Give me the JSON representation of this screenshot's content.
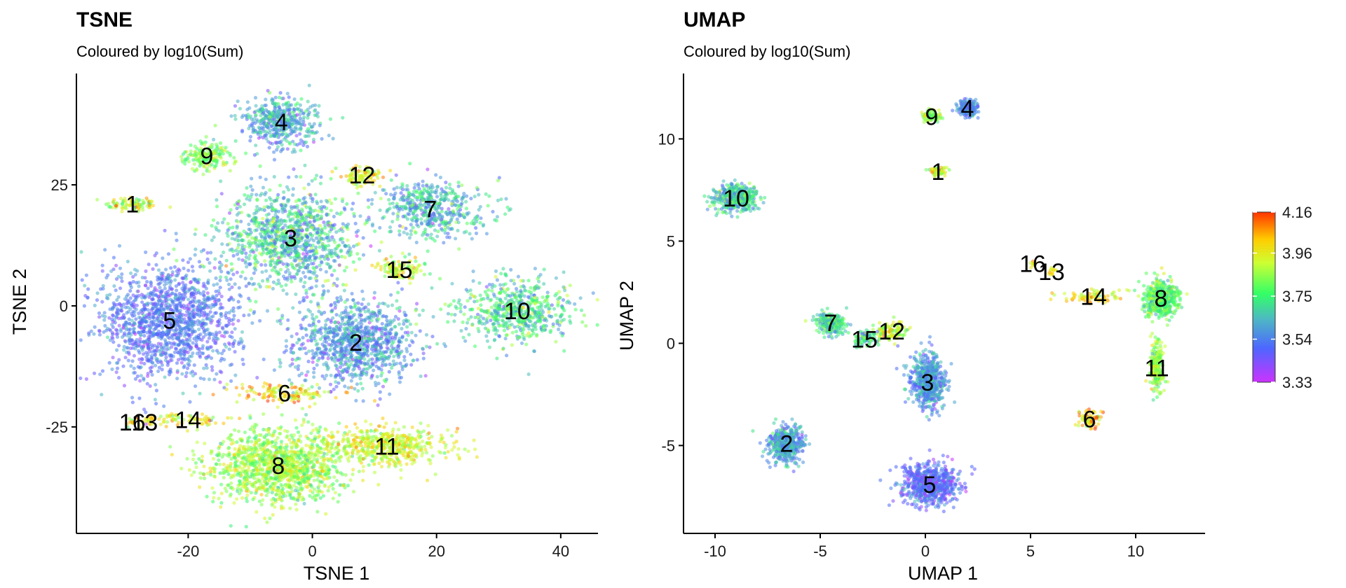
{
  "colors": {
    "scale": [
      "#cc33ff",
      "#4d66ff",
      "#4db8c4",
      "#33ff66",
      "#ccff33",
      "#ffcc00",
      "#ff3300"
    ],
    "text": "#000000"
  },
  "legend": {
    "ticks": [
      "4.16",
      "3.96",
      "3.75",
      "3.54",
      "3.33"
    ],
    "range": [
      3.33,
      4.16
    ],
    "tick_values": [
      4.16,
      3.96,
      3.75,
      3.54,
      3.33
    ]
  },
  "chart_data": [
    {
      "type": "scatter",
      "title": "TSNE",
      "subtitle": "Coloured by log10(Sum)",
      "xlabel": "TSNE 1",
      "ylabel": "TSNE 2",
      "xlim": [
        -38,
        46
      ],
      "ylim": [
        -47,
        48
      ],
      "xticks": [
        -20,
        0,
        20,
        40
      ],
      "xtick_labels": [
        "-20",
        "0",
        "20",
        "40"
      ],
      "yticks": [
        25,
        0,
        -25
      ],
      "ytick_labels": [
        "25",
        "0",
        "-25"
      ],
      "grid": false,
      "color_variable": "log10(Sum)",
      "clusters": [
        {
          "label": "1",
          "x": -29,
          "y": 21,
          "sx": 4,
          "sy": 1.5,
          "n": 90,
          "mean": 3.9,
          "spread": 0.12
        },
        {
          "label": "2",
          "x": 7,
          "y": -7.5,
          "sx": 9,
          "sy": 8,
          "n": 1000,
          "mean": 3.58,
          "spread": 0.09
        },
        {
          "label": "3",
          "x": -3.5,
          "y": 14,
          "sx": 10,
          "sy": 9,
          "n": 1100,
          "mean": 3.66,
          "spread": 0.12
        },
        {
          "label": "4",
          "x": -5,
          "y": 38,
          "sx": 5.5,
          "sy": 4.5,
          "n": 450,
          "mean": 3.6,
          "spread": 0.09
        },
        {
          "label": "5",
          "x": -23,
          "y": -3,
          "sx": 10,
          "sy": 11,
          "n": 1400,
          "mean": 3.52,
          "spread": 0.07
        },
        {
          "label": "6",
          "x": -4.5,
          "y": -18,
          "sx": 7,
          "sy": 1.8,
          "n": 130,
          "mean": 3.98,
          "spread": 0.1
        },
        {
          "label": "7",
          "x": 19,
          "y": 20,
          "sx": 7,
          "sy": 5.5,
          "n": 500,
          "mean": 3.65,
          "spread": 0.1
        },
        {
          "label": "8",
          "x": -5.5,
          "y": -33,
          "sx": 10,
          "sy": 7,
          "n": 1200,
          "mean": 3.86,
          "spread": 0.08
        },
        {
          "label": "9",
          "x": -17,
          "y": 31,
          "sx": 3.5,
          "sy": 2.5,
          "n": 170,
          "mean": 3.82,
          "spread": 0.08
        },
        {
          "label": "10",
          "x": 33,
          "y": -1,
          "sx": 8,
          "sy": 6,
          "n": 600,
          "mean": 3.72,
          "spread": 0.1
        },
        {
          "label": "11",
          "x": 12,
          "y": -29,
          "sx": 9,
          "sy": 3.5,
          "n": 500,
          "mean": 3.93,
          "spread": 0.07
        },
        {
          "label": "12",
          "x": 8,
          "y": 27,
          "sx": 3,
          "sy": 1.8,
          "n": 90,
          "mean": 3.95,
          "spread": 0.08
        },
        {
          "label": "13",
          "x": -27,
          "y": -24,
          "sx": 1.5,
          "sy": 1,
          "n": 18,
          "mean": 3.95,
          "spread": 0.08
        },
        {
          "label": "14",
          "x": -20,
          "y": -23.5,
          "sx": 5,
          "sy": 1.2,
          "n": 70,
          "mean": 3.96,
          "spread": 0.08
        },
        {
          "label": "15",
          "x": 14,
          "y": 7.5,
          "sx": 3.5,
          "sy": 2.2,
          "n": 110,
          "mean": 3.92,
          "spread": 0.08
        },
        {
          "label": "16",
          "x": -29,
          "y": -24,
          "sx": 1,
          "sy": 0.8,
          "n": 10,
          "mean": 3.95,
          "spread": 0.08
        }
      ]
    },
    {
      "type": "scatter",
      "title": "UMAP",
      "subtitle": "Coloured by log10(Sum)",
      "xlabel": "UMAP 1",
      "ylabel": "UMAP 2",
      "xlim": [
        -11.5,
        13.3
      ],
      "ylim": [
        -9.3,
        13.2
      ],
      "xticks": [
        -10,
        -5,
        0,
        5,
        10
      ],
      "xtick_labels": [
        "-10",
        "-5",
        "0",
        "5",
        "10"
      ],
      "yticks": [
        10,
        5,
        0,
        -5
      ],
      "ytick_labels": [
        "10",
        "5",
        "0",
        "-5"
      ],
      "grid": false,
      "color_variable": "log10(Sum)",
      "clusters": [
        {
          "label": "1",
          "x": 0.6,
          "y": 8.4,
          "sx": 0.35,
          "sy": 0.2,
          "n": 70,
          "mean": 3.9,
          "spread": 0.1
        },
        {
          "label": "2",
          "x": -6.6,
          "y": -4.9,
          "sx": 0.8,
          "sy": 0.8,
          "n": 450,
          "mean": 3.6,
          "spread": 0.08
        },
        {
          "label": "3",
          "x": 0.1,
          "y": -1.9,
          "sx": 0.75,
          "sy": 1.2,
          "n": 650,
          "mean": 3.58,
          "spread": 0.08
        },
        {
          "label": "4",
          "x": 2.0,
          "y": 11.5,
          "sx": 0.45,
          "sy": 0.35,
          "n": 220,
          "mean": 3.55,
          "spread": 0.07
        },
        {
          "label": "5",
          "x": 0.2,
          "y": -6.9,
          "sx": 1.2,
          "sy": 0.9,
          "n": 700,
          "mean": 3.5,
          "spread": 0.07
        },
        {
          "label": "6",
          "x": 7.8,
          "y": -3.7,
          "sx": 0.45,
          "sy": 0.35,
          "n": 70,
          "mean": 4.0,
          "spread": 0.1
        },
        {
          "label": "7",
          "x": -4.5,
          "y": 1.0,
          "sx": 0.6,
          "sy": 0.5,
          "n": 260,
          "mean": 3.7,
          "spread": 0.09
        },
        {
          "label": "8",
          "x": 11.2,
          "y": 2.2,
          "sx": 0.75,
          "sy": 0.8,
          "n": 550,
          "mean": 3.78,
          "spread": 0.08
        },
        {
          "label": "9",
          "x": 0.3,
          "y": 11.1,
          "sx": 0.35,
          "sy": 0.25,
          "n": 90,
          "mean": 3.85,
          "spread": 0.08
        },
        {
          "label": "10",
          "x": -9.0,
          "y": 7.1,
          "sx": 0.95,
          "sy": 0.6,
          "n": 450,
          "mean": 3.68,
          "spread": 0.1
        },
        {
          "label": "11",
          "x": 11.0,
          "y": -1.2,
          "sx": 0.3,
          "sy": 1.2,
          "n": 220,
          "mean": 3.85,
          "spread": 0.08
        },
        {
          "label": "12",
          "x": -1.6,
          "y": 0.6,
          "sx": 0.7,
          "sy": 0.45,
          "n": 110,
          "mean": 3.92,
          "spread": 0.08
        },
        {
          "label": "13",
          "x": 6.0,
          "y": 3.5,
          "sx": 0.2,
          "sy": 0.15,
          "n": 14,
          "mean": 3.95,
          "spread": 0.08
        },
        {
          "label": "14",
          "x": 8.0,
          "y": 2.3,
          "sx": 1.3,
          "sy": 0.3,
          "n": 80,
          "mean": 3.97,
          "spread": 0.08
        },
        {
          "label": "15",
          "x": -2.9,
          "y": 0.2,
          "sx": 0.5,
          "sy": 0.35,
          "n": 80,
          "mean": 3.72,
          "spread": 0.1
        },
        {
          "label": "16",
          "x": 5.1,
          "y": 3.9,
          "sx": 0.2,
          "sy": 0.15,
          "n": 10,
          "mean": 3.95,
          "spread": 0.08
        }
      ]
    }
  ]
}
